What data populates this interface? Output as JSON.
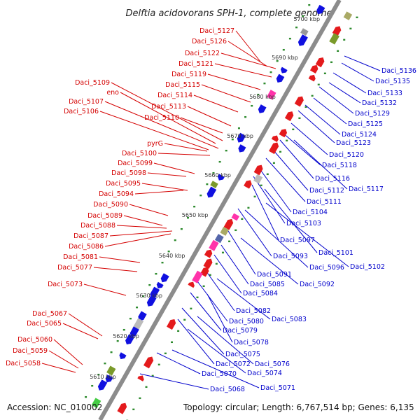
{
  "title": "Delftia acidovorans SPH-1, complete genome",
  "footer": {
    "accession": "Accession: NC_010002",
    "summary": "Topology: circular; Length: 6,767,514 bp; Genes: 6,135"
  },
  "colors": {
    "backbone": "#8c8c8c",
    "forward": "#e41a1c",
    "reverse": "#1010e0",
    "tick_dot": "#2e8b2e",
    "red_label": "#d40000",
    "blue_label": "#0000cc"
  },
  "scale_marks": [
    "5610 kbp",
    "5620 kbp",
    "5630 kbp",
    "5640 kbp",
    "5650 kbp",
    "5660 kbp",
    "5670 kbp",
    "5680 kbp",
    "5690 kbp",
    "5700 kbp"
  ],
  "forward_labels": [
    "Daci_5127",
    "Daci_5126",
    "Daci_5122",
    "Daci_5121",
    "Daci_5119",
    "Daci_5109",
    "Daci_5115",
    "eno",
    "Daci_5114",
    "Daci_5107",
    "Daci_5113",
    "Daci_5106",
    "Daci_5110",
    "pyrG",
    "Daci_5100",
    "Daci_5099",
    "Daci_5098",
    "Daci_5095",
    "Daci_5094",
    "Daci_5090",
    "Daci_5089",
    "Daci_5088",
    "Daci_5087",
    "Daci_5086",
    "Daci_5081",
    "Daci_5077",
    "Daci_5073",
    "Daci_5067",
    "Daci_5065",
    "Daci_5060",
    "Daci_5059",
    "Daci_5058"
  ],
  "reverse_labels": [
    "Daci_5136",
    "Daci_5135",
    "Daci_5133",
    "Daci_5132",
    "Daci_5129",
    "Daci_5125",
    "Daci_5124",
    "Daci_5123",
    "Daci_5120",
    "Daci_5118",
    "Daci_5116",
    "Daci_5117",
    "Daci_5112",
    "Daci_5111",
    "Daci_5104",
    "Daci_5103",
    "Daci_5097",
    "Daci_5101",
    "Daci_5093",
    "Daci_5096",
    "Daci_5102",
    "Daci_5091",
    "Daci_5085",
    "Daci_5092",
    "Daci_5084",
    "Daci_5082",
    "Daci_5080",
    "Daci_5083",
    "Daci_5079",
    "Daci_5078",
    "Daci_5075",
    "Daci_5072",
    "Daci_5076",
    "Daci_5074",
    "Daci_5070",
    "Daci_5071",
    "Daci_5068"
  ]
}
